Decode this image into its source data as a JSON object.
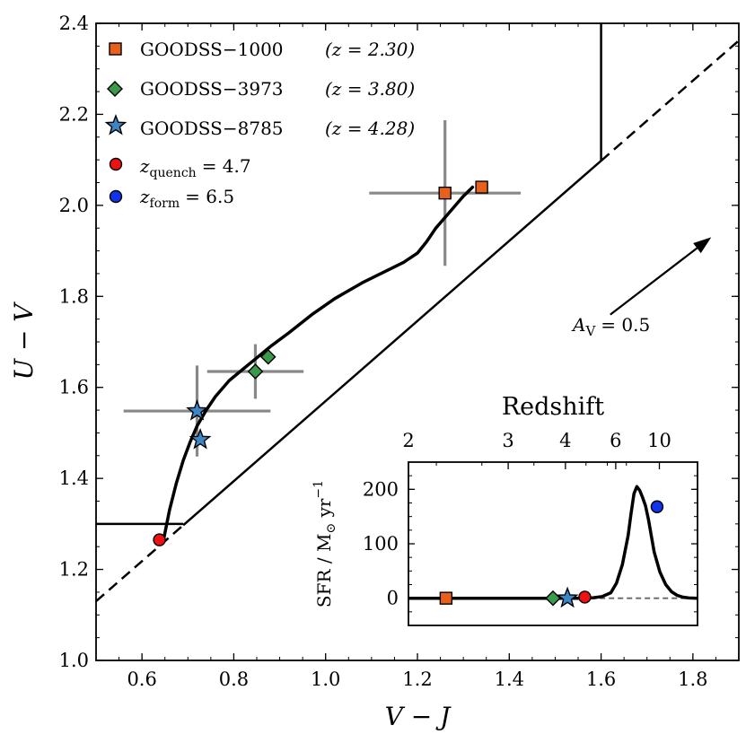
{
  "chart_data": {
    "type": "scatter",
    "main": {
      "xlabel": "V − J",
      "ylabel": "U − V",
      "xlim": [
        0.5,
        1.9
      ],
      "ylim": [
        1.0,
        2.4
      ],
      "xticks": [
        "0.6",
        "0.8",
        "1.0",
        "1.2",
        "1.4",
        "1.6",
        "1.8"
      ],
      "yticks": [
        "1.0",
        "1.2",
        "1.4",
        "1.6",
        "1.8",
        "2.0",
        "2.2",
        "2.4"
      ],
      "selection_box": {
        "horizontal": {
          "y": 1.3,
          "x_from": 0.5,
          "x_to": 0.69
        },
        "diagonal": {
          "slope": 0.88,
          "intercept": 0.69,
          "x_from": 0.69,
          "x_to": 1.6
        },
        "vertical": {
          "x": 1.6,
          "y_from": 2.098,
          "y_to": 2.4
        },
        "dashed_extensions": [
          {
            "x_from": 0.5,
            "x_to": 0.69
          },
          {
            "x_from": 1.6,
            "x_to": 1.9
          }
        ]
      },
      "track": {
        "x": [
          0.647,
          0.66,
          0.675,
          0.69,
          0.705,
          0.72,
          0.74,
          0.76,
          0.79,
          0.82,
          0.85,
          0.88,
          0.92,
          0.97,
          1.02,
          1.08,
          1.13,
          1.17,
          1.2,
          1.22,
          1.24,
          1.27,
          1.3,
          1.32
        ],
        "y": [
          1.265,
          1.33,
          1.39,
          1.44,
          1.48,
          1.515,
          1.55,
          1.58,
          1.615,
          1.64,
          1.665,
          1.69,
          1.72,
          1.76,
          1.795,
          1.83,
          1.855,
          1.875,
          1.895,
          1.92,
          1.95,
          1.985,
          2.02,
          2.04
        ]
      },
      "galaxies": [
        {
          "name": "GOODSS−1000",
          "redshift": "2.30",
          "marker": "square",
          "color": "#e8601c",
          "points": [
            {
              "x": 1.26,
              "y": 2.027,
              "xerr": 0.165,
              "yerr": 0.16
            },
            {
              "x": 1.34,
              "y": 2.04
            }
          ]
        },
        {
          "name": "GOODSS−3973",
          "redshift": "3.80",
          "marker": "diamond",
          "color": "#3a9a4a",
          "points": [
            {
              "x": 0.847,
              "y": 1.635,
              "xerr": 0.105,
              "yerr": 0.06
            },
            {
              "x": 0.875,
              "y": 1.667
            }
          ]
        },
        {
          "name": "GOODSS−8785",
          "redshift": "4.28",
          "marker": "star",
          "color": "#3d86c6",
          "points": [
            {
              "x": 0.72,
              "y": 1.548,
              "xerr": 0.16,
              "yerr": 0.1
            },
            {
              "x": 0.727,
              "y": 1.485
            }
          ]
        }
      ],
      "quench_point": {
        "x": 0.638,
        "y": 1.265,
        "color": "#ee1111"
      },
      "legend": [
        {
          "marker": "square",
          "color": "#e8601c",
          "label": "GOODSS−1000",
          "z_label": "(z = 2.30)"
        },
        {
          "marker": "diamond",
          "color": "#3a9a4a",
          "label": "GOODSS−3973",
          "z_label": "(z = 3.80)"
        },
        {
          "marker": "star",
          "color": "#3d86c6",
          "label": "GOODSS−8785",
          "z_label": "(z = 4.28)"
        },
        {
          "marker": "circle",
          "color": "#ee1111",
          "symbol": "z",
          "subscript": "quench",
          "value": "= 4.7"
        },
        {
          "marker": "circle",
          "color": "#1133ee",
          "symbol": "z",
          "subscript": "form",
          "value": "= 6.5"
        }
      ],
      "dust_vector": {
        "label_symbol": "A",
        "label_subscript": "V",
        "label_value": "= 0.5",
        "x_from": 1.62,
        "y_from": 1.76,
        "x_to": 1.84,
        "y_to": 1.93
      }
    },
    "inset": {
      "title": "Redshift",
      "ylabel": "SFR / M⊙ yr⁻¹",
      "ylabel_parts": {
        "text": "SFR / M",
        "sub": "⊙",
        "mid": " yr",
        "sup": "−1"
      },
      "ylim": [
        -50,
        250
      ],
      "yticks": [
        "0",
        "100",
        "200"
      ],
      "top_ticks": [
        "2",
        "3",
        "4",
        "6",
        "10"
      ],
      "baseline_style": "dashed",
      "sfr_curve": {
        "pos": [
          0.0,
          0.59,
          0.61,
          0.64,
          0.67,
          0.7,
          0.72,
          0.74,
          0.76,
          0.77,
          0.78,
          0.79,
          0.8,
          0.81,
          0.82,
          0.83,
          0.84,
          0.85,
          0.87,
          0.89,
          0.91,
          0.93,
          0.95,
          0.97,
          1.0
        ],
        "sfr": [
          0,
          0,
          0,
          1,
          3,
          10,
          28,
          62,
          115,
          155,
          192,
          205,
          198,
          185,
          170,
          145,
          115,
          85,
          48,
          25,
          12,
          5,
          2,
          0.5,
          0
        ]
      },
      "markers": [
        {
          "marker": "square",
          "color": "#e8601c",
          "pos": 0.13,
          "sfr": 0
        },
        {
          "marker": "diamond",
          "color": "#3a9a4a",
          "pos": 0.5,
          "sfr": 0
        },
        {
          "marker": "star",
          "color": "#3d86c6",
          "pos": 0.55,
          "sfr": 0
        },
        {
          "marker": "circle",
          "color": "#ee1111",
          "pos": 0.61,
          "sfr": 2
        },
        {
          "marker": "circle",
          "color": "#1133ee",
          "pos": 0.86,
          "sfr": 168
        }
      ]
    }
  }
}
